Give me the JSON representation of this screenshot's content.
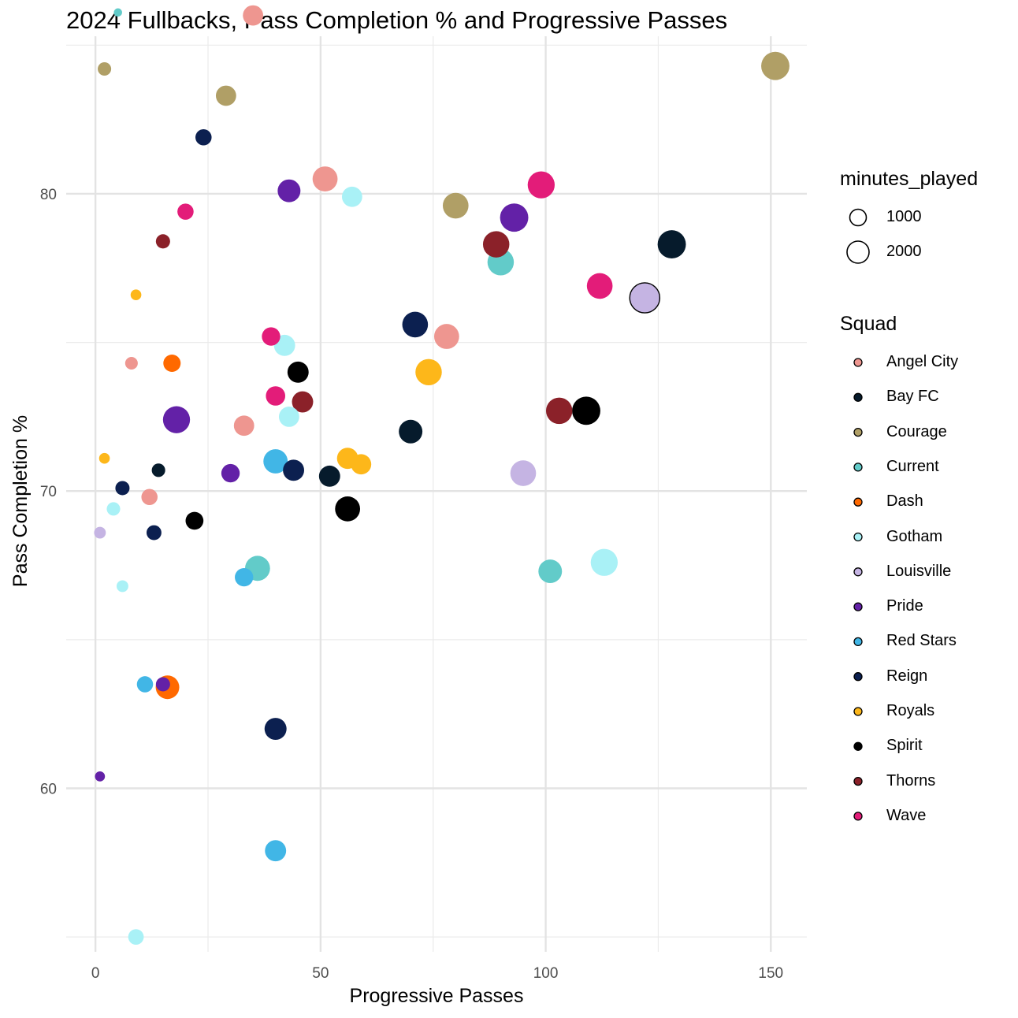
{
  "chart_data": {
    "type": "scatter",
    "title": "2024 Fullbacks, Pass Completion % and Progressive Passes",
    "xlabel": "Progressive Passes",
    "ylabel": "Pass Completion %",
    "xlim": [
      -6.5,
      158
    ],
    "ylim": [
      54.5,
      85.3
    ],
    "xticks": [
      0,
      50,
      100,
      150
    ],
    "yticks": [
      60,
      70,
      80
    ],
    "x_minor_gridlines": [
      25,
      75,
      125
    ],
    "y_minor_gridlines": [
      55,
      65,
      75,
      85
    ],
    "grid": true,
    "legend_position": "right",
    "size_legend": {
      "title": "minutes_played",
      "entries": [
        {
          "label": "1000",
          "value": 1000
        },
        {
          "label": "2000",
          "value": 2000
        }
      ]
    },
    "color_legend": {
      "title": "Squad",
      "entries": [
        {
          "label": "Angel City",
          "color": "#EE9690"
        },
        {
          "label": "Bay FC",
          "color": "#061B2C"
        },
        {
          "label": "Courage",
          "color": "#B09F66"
        },
        {
          "label": "Current",
          "color": "#62CBC9"
        },
        {
          "label": "Dash",
          "color": "#FF6900"
        },
        {
          "label": "Gotham",
          "color": "#A9F1F6"
        },
        {
          "label": "Louisville",
          "color": "#C5B4E3"
        },
        {
          "label": "Pride",
          "color": "#6321A7"
        },
        {
          "label": "Red Stars",
          "color": "#41B6E6"
        },
        {
          "label": "Reign",
          "color": "#0C2050"
        },
        {
          "label": "Royals",
          "color": "#FDB71A"
        },
        {
          "label": "Spirit",
          "color": "#000000"
        },
        {
          "label": "Thorns",
          "color": "#8B2129"
        },
        {
          "label": "Wave",
          "color": "#E31C79"
        }
      ]
    },
    "series": [
      {
        "name": "Angel City",
        "color": "#EE9690",
        "points": [
          {
            "x": 35,
            "y": 86.0,
            "minutes": 900
          },
          {
            "x": 51,
            "y": 80.5,
            "minutes": 1500
          },
          {
            "x": 78,
            "y": 75.2,
            "minutes": 1500
          },
          {
            "x": 8,
            "y": 74.3,
            "minutes": 250
          },
          {
            "x": 33,
            "y": 72.2,
            "minutes": 900
          },
          {
            "x": 12,
            "y": 69.8,
            "minutes": 500
          }
        ]
      },
      {
        "name": "Bay FC",
        "color": "#061B2C",
        "points": [
          {
            "x": 128,
            "y": 78.3,
            "minutes": 2000
          },
          {
            "x": 70,
            "y": 72.0,
            "minutes": 1300
          },
          {
            "x": 52,
            "y": 70.5,
            "minutes": 1000
          },
          {
            "x": 14,
            "y": 70.7,
            "minutes": 300
          }
        ]
      },
      {
        "name": "Courage",
        "color": "#B09F66",
        "points": [
          {
            "x": 151,
            "y": 84.3,
            "minutes": 2000
          },
          {
            "x": 2,
            "y": 84.2,
            "minutes": 300
          },
          {
            "x": 29,
            "y": 83.3,
            "minutes": 900
          },
          {
            "x": 80,
            "y": 79.6,
            "minutes": 1600
          }
        ]
      },
      {
        "name": "Current",
        "color": "#62CBC9",
        "points": [
          {
            "x": 90,
            "y": 77.7,
            "minutes": 1700
          },
          {
            "x": 36,
            "y": 67.4,
            "minutes": 1500
          },
          {
            "x": 101,
            "y": 67.3,
            "minutes": 1300
          },
          {
            "x": 5,
            "y": 86.1,
            "minutes": 60
          }
        ]
      },
      {
        "name": "Dash",
        "color": "#FF6900",
        "points": [
          {
            "x": 17,
            "y": 74.3,
            "minutes": 600
          },
          {
            "x": 16,
            "y": 63.4,
            "minutes": 1300
          }
        ]
      },
      {
        "name": "Gotham",
        "color": "#A9F1F6",
        "points": [
          {
            "x": 57,
            "y": 79.9,
            "minutes": 900
          },
          {
            "x": 42,
            "y": 74.9,
            "minutes": 1000
          },
          {
            "x": 43,
            "y": 72.5,
            "minutes": 900
          },
          {
            "x": 113,
            "y": 67.6,
            "minutes": 1800
          },
          {
            "x": 4,
            "y": 69.4,
            "minutes": 300
          },
          {
            "x": 6,
            "y": 66.8,
            "minutes": 200
          },
          {
            "x": 9,
            "y": 55.0,
            "minutes": 450
          }
        ]
      },
      {
        "name": "Louisville",
        "color": "#C5B4E3",
        "points": [
          {
            "x": 122,
            "y": 76.5,
            "minutes": 2300
          },
          {
            "x": 95,
            "y": 70.6,
            "minutes": 1600
          },
          {
            "x": 1,
            "y": 68.6,
            "minutes": 200
          }
        ]
      },
      {
        "name": "Pride",
        "color": "#6321A7",
        "points": [
          {
            "x": 43,
            "y": 80.1,
            "minutes": 1200
          },
          {
            "x": 93,
            "y": 79.2,
            "minutes": 2000
          },
          {
            "x": 18,
            "y": 72.4,
            "minutes": 1800
          },
          {
            "x": 30,
            "y": 70.6,
            "minutes": 700
          },
          {
            "x": 15,
            "y": 63.5,
            "minutes": 350
          },
          {
            "x": 1,
            "y": 60.4,
            "minutes": 120
          }
        ]
      },
      {
        "name": "Red Stars",
        "color": "#41B6E6",
        "points": [
          {
            "x": 40,
            "y": 71.0,
            "minutes": 1400
          },
          {
            "x": 33,
            "y": 67.1,
            "minutes": 700
          },
          {
            "x": 11,
            "y": 63.5,
            "minutes": 500
          },
          {
            "x": 40,
            "y": 57.9,
            "minutes": 1000
          }
        ]
      },
      {
        "name": "Reign",
        "color": "#0C2050",
        "points": [
          {
            "x": 24,
            "y": 81.9,
            "minutes": 500
          },
          {
            "x": 71,
            "y": 75.6,
            "minutes": 1600
          },
          {
            "x": 44,
            "y": 70.7,
            "minutes": 1000
          },
          {
            "x": 6,
            "y": 70.1,
            "minutes": 350
          },
          {
            "x": 13,
            "y": 68.6,
            "minutes": 400
          },
          {
            "x": 40,
            "y": 62.0,
            "minutes": 1100
          }
        ]
      },
      {
        "name": "Royals",
        "color": "#FDB71A",
        "points": [
          {
            "x": 9,
            "y": 76.6,
            "minutes": 150
          },
          {
            "x": 74,
            "y": 74.0,
            "minutes": 1700
          },
          {
            "x": 56,
            "y": 71.1,
            "minutes": 1000
          },
          {
            "x": 59,
            "y": 70.9,
            "minutes": 900
          },
          {
            "x": 2,
            "y": 71.1,
            "minutes": 150
          }
        ]
      },
      {
        "name": "Spirit",
        "color": "#000000",
        "points": [
          {
            "x": 45,
            "y": 74.0,
            "minutes": 1000
          },
          {
            "x": 109,
            "y": 72.7,
            "minutes": 2000
          },
          {
            "x": 56,
            "y": 69.4,
            "minutes": 1500
          },
          {
            "x": 22,
            "y": 69.0,
            "minutes": 650
          }
        ]
      },
      {
        "name": "Thorns",
        "color": "#8B2129",
        "points": [
          {
            "x": 89,
            "y": 78.3,
            "minutes": 1700
          },
          {
            "x": 15,
            "y": 78.4,
            "minutes": 350
          },
          {
            "x": 46,
            "y": 73.0,
            "minutes": 1000
          },
          {
            "x": 103,
            "y": 72.7,
            "minutes": 1700
          }
        ]
      },
      {
        "name": "Wave",
        "color": "#E31C79",
        "points": [
          {
            "x": 99,
            "y": 80.3,
            "minutes": 1800
          },
          {
            "x": 112,
            "y": 76.9,
            "minutes": 1600
          },
          {
            "x": 20,
            "y": 79.4,
            "minutes": 500
          },
          {
            "x": 39,
            "y": 75.2,
            "minutes": 700
          },
          {
            "x": 40,
            "y": 73.2,
            "minutes": 800
          }
        ]
      }
    ]
  }
}
